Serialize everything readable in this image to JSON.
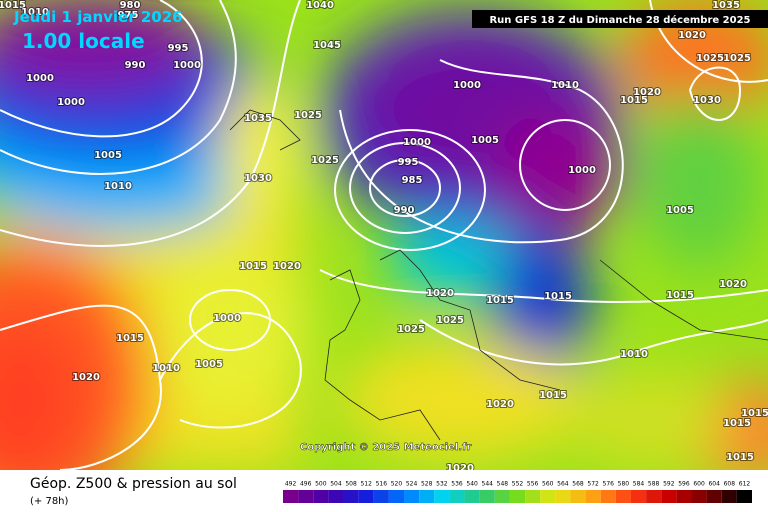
{
  "header": {
    "date": "Jeudi 1 janvier 2026",
    "time": "1.00 locale",
    "run": "Run GFS 18 Z du Dimanche 28 décembre 2025"
  },
  "map": {
    "isobar_labels": [
      "1015",
      "1010",
      "980",
      "975",
      "995",
      "990",
      "1000",
      "1000",
      "1000",
      "1005",
      "1010",
      "1035",
      "1030",
      "1040",
      "1045",
      "1025",
      "1025",
      "1000",
      "1010",
      "1000",
      "995",
      "985",
      "990",
      "1005",
      "1000",
      "1020",
      "1025",
      "1025",
      "1015",
      "1020",
      "1030",
      "1035",
      "1005",
      "1015",
      "1020",
      "1000",
      "1015",
      "1010",
      "1005",
      "1020",
      "1020",
      "1015",
      "1015",
      "1015",
      "1020",
      "1025",
      "1025",
      "1010",
      "1015",
      "1020",
      "1015",
      "1015",
      "1015",
      "1020"
    ],
    "copyright": "Copyright © 2025 Meteociel.fr"
  },
  "footer": {
    "title": "Géop. Z500 & pression au sol",
    "lead": "(+ 78h)",
    "scale": [
      492,
      496,
      500,
      504,
      508,
      512,
      516,
      520,
      524,
      528,
      532,
      536,
      540,
      544,
      548,
      552,
      556,
      560,
      564,
      568,
      572,
      576,
      580,
      584,
      588,
      592,
      596,
      600,
      604,
      608,
      612
    ]
  }
}
